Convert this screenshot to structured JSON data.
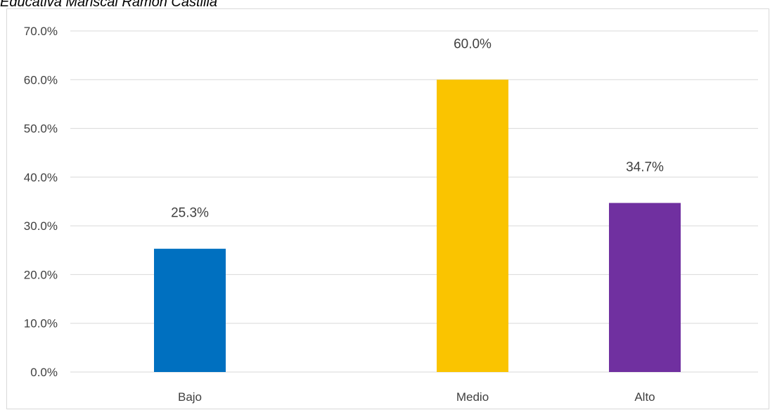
{
  "caption": "Educativa Mariscal Ramón Castilla",
  "chart_data": {
    "type": "bar",
    "title": "",
    "xlabel": "",
    "ylabel": "",
    "categories": [
      "Bajo",
      "Medio",
      "Alto"
    ],
    "values": [
      25.3,
      60.0,
      34.7
    ],
    "data_labels": [
      "25.3%",
      "60.0%",
      "34.7%"
    ],
    "colors": [
      "#0070c0",
      "#fac400",
      "#7030a0"
    ],
    "ylim": [
      0,
      70
    ],
    "y_ticks": [
      0,
      10,
      20,
      30,
      40,
      50,
      60,
      70
    ],
    "y_tick_labels": [
      "0.0%",
      "10.0%",
      "20.0%",
      "30.0%",
      "40.0%",
      "50.0%",
      "60.0%",
      "70.0%"
    ],
    "grid": true,
    "legend": "none"
  }
}
